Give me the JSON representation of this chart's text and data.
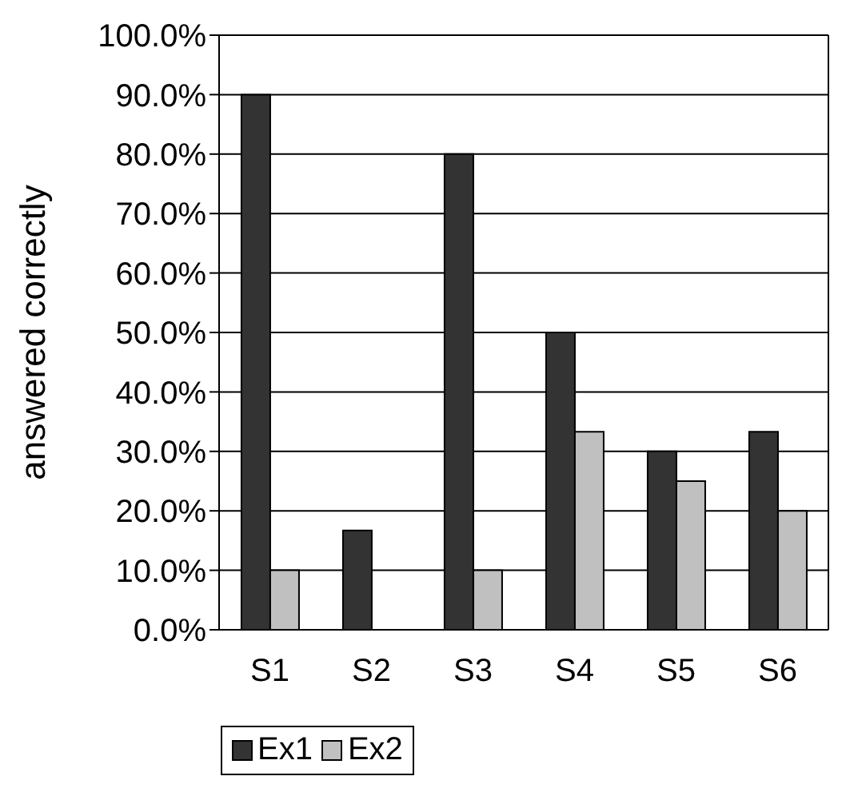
{
  "chart_data": {
    "type": "bar",
    "ylabel": "answered correctly",
    "categories": [
      "S1",
      "S2",
      "S3",
      "S4",
      "S5",
      "S6"
    ],
    "series": [
      {
        "name": "Ex1",
        "color": "#333333",
        "values": [
          90,
          16.7,
          80,
          50,
          30,
          33.3
        ]
      },
      {
        "name": "Ex2",
        "color": "#c0c0c0",
        "values": [
          10,
          0,
          10,
          33.3,
          25,
          20
        ]
      }
    ],
    "ylim": [
      0,
      100
    ],
    "yticks": [
      {
        "value": 0,
        "label": "0.0%"
      },
      {
        "value": 10,
        "label": "10.0%"
      },
      {
        "value": 20,
        "label": "20.0%"
      },
      {
        "value": 30,
        "label": "30.0%"
      },
      {
        "value": 40,
        "label": "40.0%"
      },
      {
        "value": 50,
        "label": "50.0%"
      },
      {
        "value": 60,
        "label": "60.0%"
      },
      {
        "value": 70,
        "label": "70.0%"
      },
      {
        "value": 80,
        "label": "80.0%"
      },
      {
        "value": 90,
        "label": "90.0%"
      },
      {
        "value": 100,
        "label": "100.0%"
      }
    ],
    "grid": "y",
    "legend": "bottom"
  }
}
